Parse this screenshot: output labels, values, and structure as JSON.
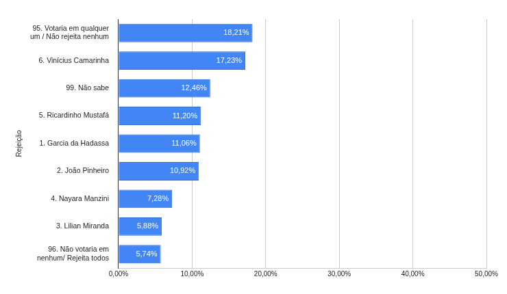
{
  "chart_data": {
    "type": "bar",
    "orientation": "horizontal",
    "y_label": "Rejeição",
    "categories": [
      "95. Votaria em qualquer um / Não rejeita nenhum",
      "6. Vinícius Camarinha",
      "99. Não sabe",
      "5. Ricardinho Mustafá",
      "1. Garcia da Hadassa",
      "2. João Pinheiro",
      "4. Nayara Manzini",
      "3. Lilian Miranda",
      "96. Não votaria em nenhum/ Rejeita todos"
    ],
    "values": [
      18.21,
      17.23,
      12.46,
      11.2,
      11.06,
      10.92,
      7.28,
      5.88,
      5.74
    ],
    "value_labels": [
      "18,21%",
      "17,23%",
      "12,46%",
      "11,20%",
      "11,06%",
      "10,92%",
      "7,28%",
      "5,88%",
      "5,74%"
    ],
    "color": "#4285f4",
    "xlim": [
      0,
      50
    ],
    "xticks": [
      {
        "value": 0,
        "label": "0,00%"
      },
      {
        "value": 10,
        "label": "10,00%"
      },
      {
        "value": 20,
        "label": "20,00%"
      },
      {
        "value": 30,
        "label": "30,00%"
      },
      {
        "value": 40,
        "label": "40,00%"
      },
      {
        "value": 50,
        "label": "50,00%"
      }
    ],
    "grid": true,
    "data_labels": true
  }
}
